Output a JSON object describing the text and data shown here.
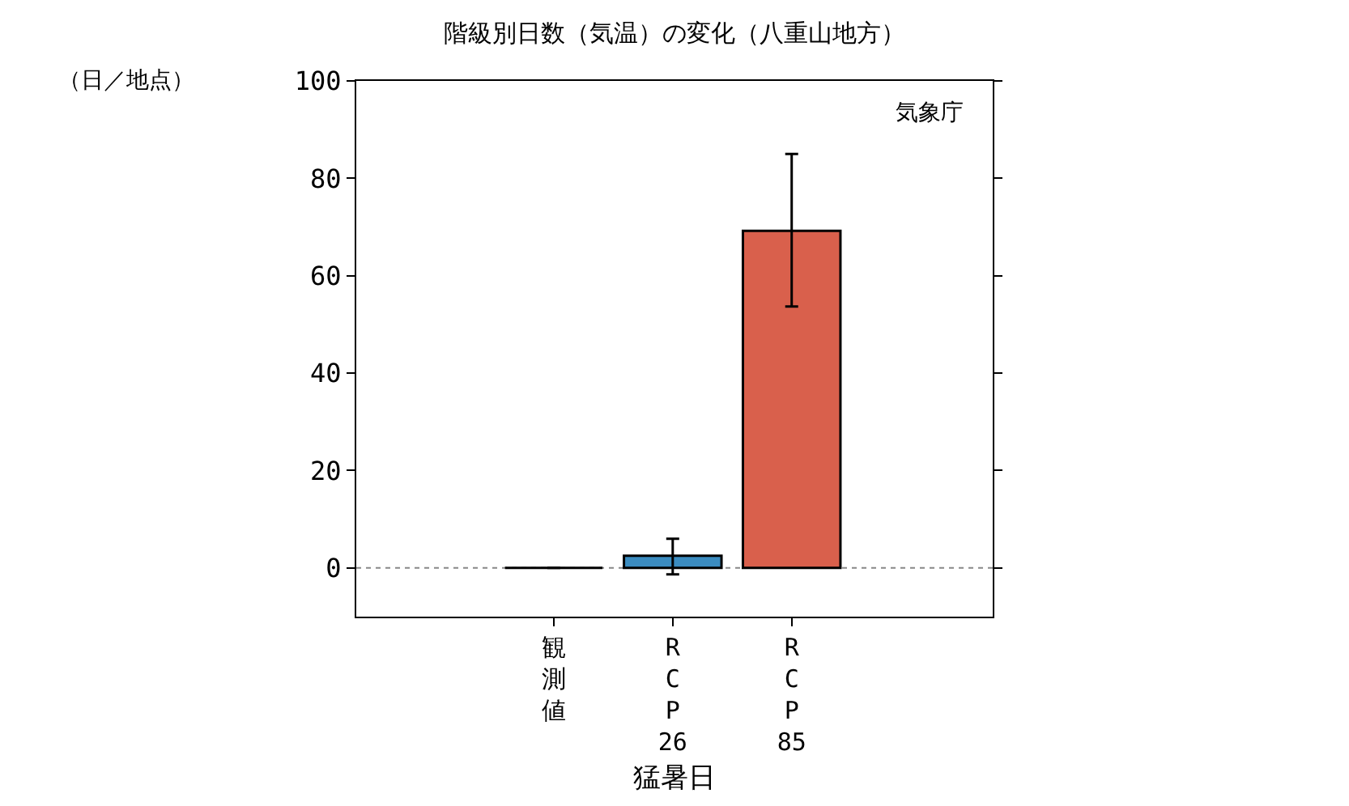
{
  "chart_data": {
    "type": "bar",
    "title": "階級別日数（気温）の変化（八重山地方）",
    "ylabel": "（日／地点）",
    "xlabel": "猛暑日",
    "categories": [
      "観測値",
      "RCP26",
      "RCP85"
    ],
    "values": [
      0,
      2.5,
      69.2
    ],
    "colors": [
      "#000000",
      "#3b8cc0",
      "#d9604c"
    ],
    "errors": [
      null,
      [
        -1.3,
        6
      ],
      [
        53.7,
        85
      ]
    ],
    "ylim": [
      -10,
      100
    ],
    "yticks": [
      0,
      20,
      40,
      60,
      80,
      100
    ],
    "ref_lines": [
      {
        "axis": "y",
        "value": 0,
        "color": "#888888",
        "line_style": "dotted"
      }
    ],
    "annotations": [
      "気象庁"
    ],
    "grid": false,
    "legend": false
  }
}
